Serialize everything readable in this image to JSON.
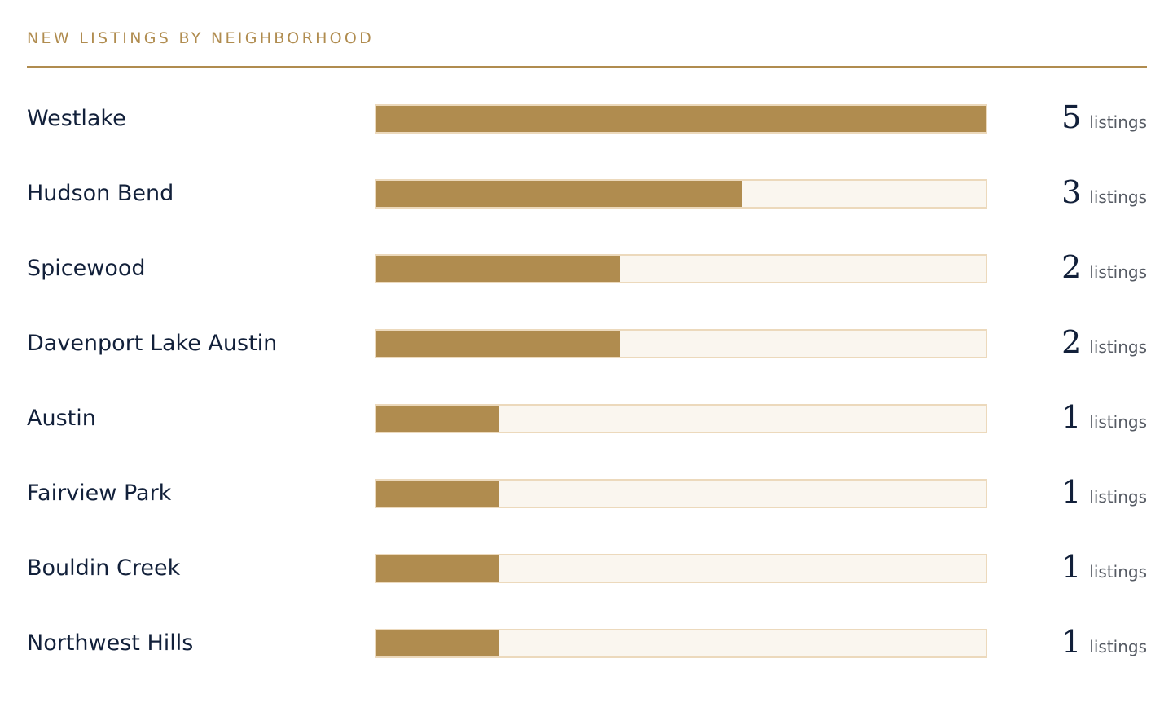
{
  "section": {
    "title": "NEW LISTINGS BY NEIGHBORHOOD"
  },
  "colors": {
    "accent": "#b08c4f",
    "track": "#faf6ef",
    "track_border": "#ecd9bc",
    "label": "#12203a",
    "unit": "#555a63"
  },
  "chart_data": {
    "type": "bar",
    "orientation": "horizontal",
    "title": "NEW LISTINGS BY NEIGHBORHOOD",
    "xlim": [
      0,
      5
    ],
    "unit_label": "listings",
    "grid": false,
    "categories": [
      "Westlake",
      "Hudson Bend",
      "Spicewood",
      "Davenport Lake Austin",
      "Austin",
      "Fairview Park",
      "Bouldin Creek",
      "Northwest Hills"
    ],
    "values": [
      5,
      3,
      2,
      2,
      1,
      1,
      1,
      1
    ]
  }
}
